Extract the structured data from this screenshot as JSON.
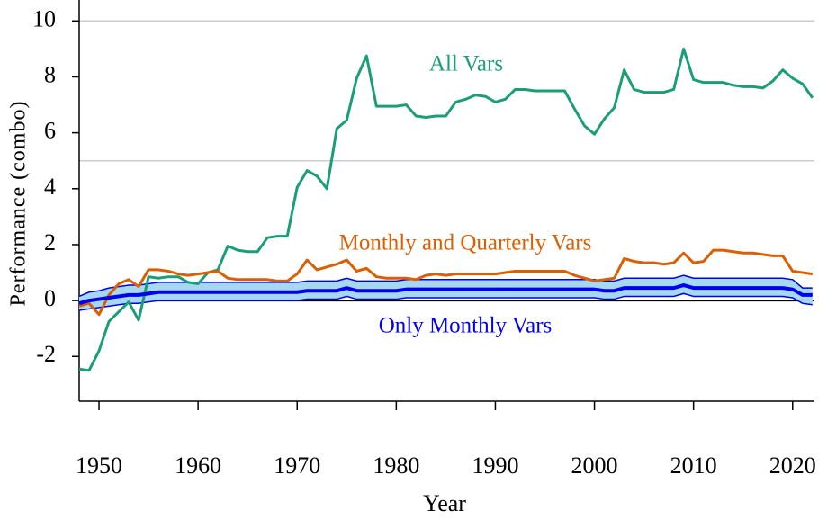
{
  "chart_data": {
    "type": "line",
    "x_label": "Year",
    "y_label": "Performance (combo)",
    "xlim": [
      1948,
      2022.2
    ],
    "ylim": [
      -3.6,
      10.75
    ],
    "xticks": [
      1950,
      1960,
      1970,
      1980,
      1990,
      2000,
      2010,
      2020
    ],
    "yticks": [
      -2,
      0,
      2,
      4,
      6,
      8,
      10
    ],
    "hlines": [
      {
        "value": 10,
        "color": "#cccccc"
      },
      {
        "value": 5,
        "color": "#cccccc"
      },
      {
        "value": 0,
        "color": "#000000"
      }
    ],
    "x": [
      1948,
      1949,
      1950,
      1951,
      1952,
      1953,
      1954,
      1955,
      1956,
      1957,
      1958,
      1959,
      1960,
      1961,
      1962,
      1963,
      1964,
      1965,
      1966,
      1967,
      1968,
      1969,
      1970,
      1971,
      1972,
      1973,
      1974,
      1975,
      1976,
      1977,
      1978,
      1979,
      1980,
      1981,
      1982,
      1983,
      1984,
      1985,
      1986,
      1987,
      1988,
      1989,
      1990,
      1991,
      1992,
      1993,
      1994,
      1995,
      1996,
      1997,
      1998,
      1999,
      2000,
      2001,
      2002,
      2003,
      2004,
      2005,
      2006,
      2007,
      2008,
      2009,
      2010,
      2011,
      2012,
      2013,
      2014,
      2015,
      2016,
      2017,
      2018,
      2019,
      2020,
      2021,
      2022
    ],
    "series": [
      {
        "name": "All Vars",
        "color": "#1b9e77",
        "values": [
          -2.45,
          -2.5,
          -1.8,
          -0.75,
          -0.4,
          -0.05,
          -0.7,
          0.85,
          0.8,
          0.85,
          0.85,
          0.65,
          0.6,
          1.0,
          1.1,
          1.95,
          1.8,
          1.75,
          1.75,
          2.25,
          2.3,
          2.3,
          4.05,
          4.65,
          4.45,
          4.0,
          6.15,
          6.45,
          7.95,
          8.75,
          6.95,
          6.95,
          6.95,
          7.0,
          6.6,
          6.55,
          6.6,
          6.6,
          7.1,
          7.2,
          7.35,
          7.3,
          7.1,
          7.2,
          7.55,
          7.55,
          7.5,
          7.5,
          7.5,
          7.5,
          6.85,
          6.25,
          5.95,
          6.5,
          6.9,
          8.25,
          7.55,
          7.45,
          7.45,
          7.45,
          7.55,
          9.0,
          7.9,
          7.8,
          7.8,
          7.8,
          7.7,
          7.65,
          7.65,
          7.6,
          7.85,
          8.25,
          7.95,
          7.75,
          7.25
        ]
      },
      {
        "name": "Monthly and Quarterly Vars",
        "color": "#d95f02",
        "values": [
          -0.2,
          -0.1,
          -0.5,
          0.2,
          0.6,
          0.75,
          0.5,
          1.1,
          1.1,
          1.05,
          0.95,
          0.9,
          0.95,
          1.0,
          1.05,
          0.8,
          0.75,
          0.75,
          0.75,
          0.75,
          0.7,
          0.7,
          0.95,
          1.45,
          1.1,
          1.2,
          1.3,
          1.45,
          1.05,
          1.15,
          0.85,
          0.8,
          0.8,
          0.8,
          0.75,
          0.9,
          0.95,
          0.9,
          0.95,
          0.95,
          0.95,
          0.95,
          0.95,
          1.0,
          1.05,
          1.05,
          1.05,
          1.05,
          1.05,
          1.05,
          0.9,
          0.8,
          0.7,
          0.75,
          0.8,
          1.5,
          1.4,
          1.35,
          1.35,
          1.3,
          1.35,
          1.7,
          1.35,
          1.4,
          1.8,
          1.8,
          1.75,
          1.7,
          1.7,
          1.65,
          1.6,
          1.6,
          1.05,
          1.0,
          0.95
        ]
      },
      {
        "name": "Only Monthly Vars",
        "color": "#0000ee",
        "band_color": "#a6d8f0",
        "values": [
          -0.1,
          0.0,
          0.05,
          0.1,
          0.15,
          0.2,
          0.2,
          0.25,
          0.3,
          0.3,
          0.3,
          0.3,
          0.3,
          0.3,
          0.3,
          0.3,
          0.3,
          0.3,
          0.3,
          0.3,
          0.3,
          0.3,
          0.3,
          0.35,
          0.35,
          0.35,
          0.35,
          0.45,
          0.35,
          0.35,
          0.35,
          0.35,
          0.35,
          0.4,
          0.4,
          0.4,
          0.4,
          0.4,
          0.4,
          0.4,
          0.4,
          0.4,
          0.4,
          0.4,
          0.4,
          0.4,
          0.4,
          0.4,
          0.4,
          0.4,
          0.4,
          0.4,
          0.4,
          0.35,
          0.35,
          0.45,
          0.45,
          0.45,
          0.45,
          0.45,
          0.45,
          0.55,
          0.45,
          0.45,
          0.45,
          0.45,
          0.45,
          0.45,
          0.45,
          0.45,
          0.45,
          0.45,
          0.4,
          0.2,
          0.2
        ],
        "band": {
          "upper": [
            0.15,
            0.3,
            0.35,
            0.45,
            0.5,
            0.55,
            0.55,
            0.6,
            0.65,
            0.65,
            0.65,
            0.65,
            0.65,
            0.65,
            0.65,
            0.65,
            0.65,
            0.65,
            0.65,
            0.65,
            0.65,
            0.65,
            0.65,
            0.7,
            0.7,
            0.7,
            0.7,
            0.8,
            0.7,
            0.7,
            0.7,
            0.7,
            0.7,
            0.75,
            0.75,
            0.75,
            0.75,
            0.75,
            0.75,
            0.75,
            0.75,
            0.75,
            0.75,
            0.75,
            0.75,
            0.75,
            0.75,
            0.75,
            0.75,
            0.75,
            0.75,
            0.75,
            0.75,
            0.7,
            0.7,
            0.8,
            0.8,
            0.8,
            0.8,
            0.8,
            0.8,
            0.9,
            0.8,
            0.8,
            0.8,
            0.8,
            0.8,
            0.8,
            0.8,
            0.8,
            0.8,
            0.8,
            0.75,
            0.45,
            0.45
          ],
          "lower": [
            -0.35,
            -0.3,
            -0.25,
            -0.2,
            -0.15,
            -0.1,
            -0.1,
            -0.05,
            0.0,
            0.0,
            0.0,
            0.0,
            0.0,
            0.0,
            0.0,
            0.0,
            0.0,
            0.0,
            0.0,
            0.0,
            0.0,
            0.0,
            0.0,
            0.05,
            0.05,
            0.05,
            0.05,
            0.15,
            0.05,
            0.05,
            0.05,
            0.05,
            0.05,
            0.1,
            0.1,
            0.1,
            0.1,
            0.1,
            0.1,
            0.1,
            0.1,
            0.1,
            0.1,
            0.1,
            0.1,
            0.1,
            0.1,
            0.1,
            0.1,
            0.1,
            0.1,
            0.1,
            0.1,
            0.05,
            0.05,
            0.15,
            0.15,
            0.15,
            0.15,
            0.15,
            0.15,
            0.25,
            0.15,
            0.15,
            0.15,
            0.15,
            0.15,
            0.15,
            0.15,
            0.15,
            0.15,
            0.15,
            0.1,
            -0.1,
            -0.15
          ]
        }
      }
    ]
  }
}
